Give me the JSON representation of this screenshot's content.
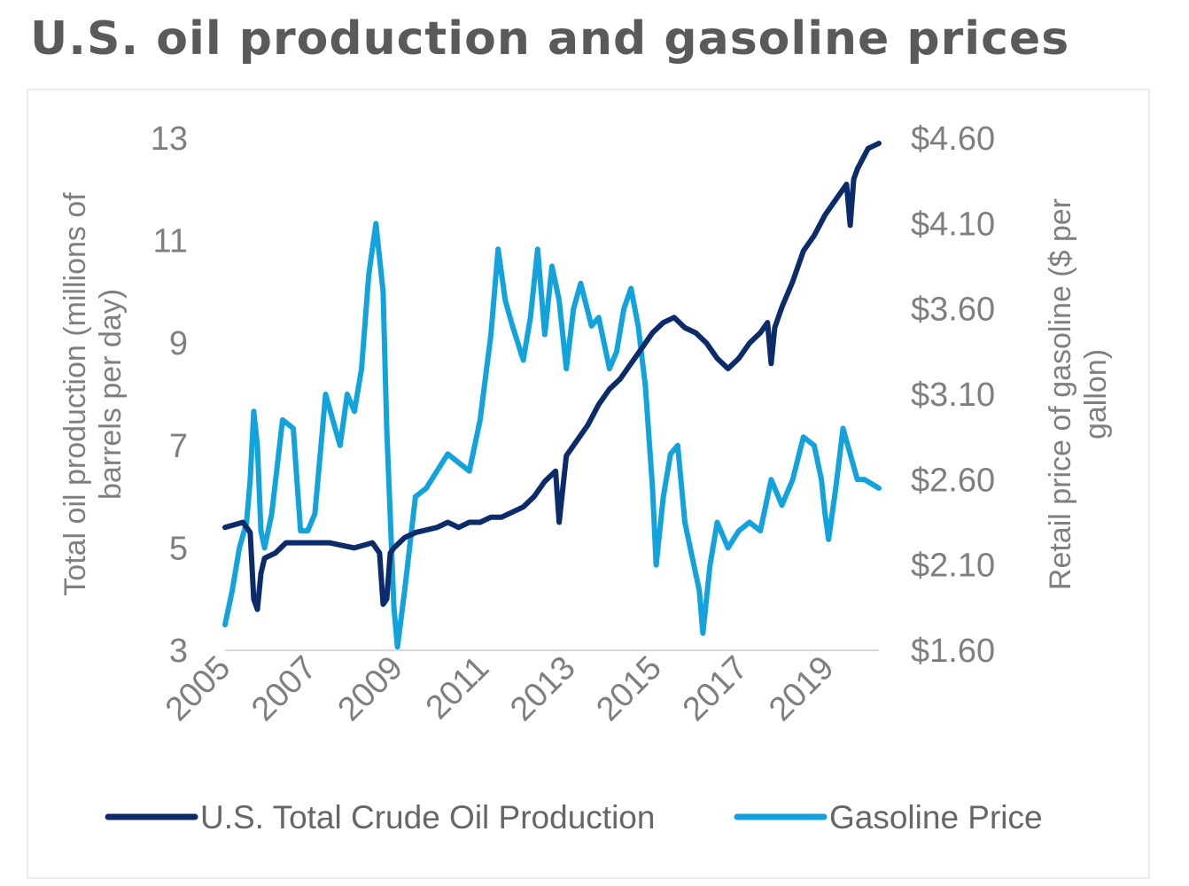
{
  "page": {
    "title": "U.S. oil production and gasoline prices"
  },
  "colors": {
    "production": "#0c2b6a",
    "gasoline": "#12a2dc",
    "axis_text": "#7f7f7f",
    "axis_line": "#d9d9d9"
  },
  "chart_data": {
    "type": "line",
    "title": "U.S. oil production and gasoline prices",
    "x_type": "date",
    "x_ticks": [
      "2005",
      "2007",
      "2009",
      "2011",
      "2013",
      "2015",
      "2017",
      "2019"
    ],
    "xlim": [
      "2005-01",
      "2020-03"
    ],
    "y_left": {
      "label": "Total oil production (millions of barrels per day)",
      "label_lines": [
        "Total oil production (millions of",
        "barrels per day)"
      ],
      "ylim": [
        3,
        13
      ],
      "ticks": [
        "3",
        "5",
        "7",
        "9",
        "11",
        "13"
      ]
    },
    "y_right": {
      "label": "Retail price of gasoline ($ per gallon)",
      "label_lines": [
        "Retail price of gasoline ($ per",
        "gallon)"
      ],
      "ylim": [
        1.6,
        4.6
      ],
      "ticks": [
        "$1.60",
        "$2.10",
        "$2.60",
        "$3.10",
        "$3.60",
        "$4.10",
        "$4.60"
      ]
    },
    "grid": false,
    "legend_position": "bottom",
    "series": [
      {
        "name": "U.S. Total Crude Oil Production",
        "axis": "left",
        "color": "#0c2b6a",
        "x": [
          "2005-01",
          "2005-06",
          "2005-08",
          "2005-09",
          "2005-10",
          "2005-11",
          "2005-12",
          "2006-03",
          "2006-06",
          "2007-01",
          "2007-06",
          "2008-01",
          "2008-06",
          "2008-08",
          "2008-09",
          "2008-10",
          "2008-11",
          "2008-12",
          "2009-03",
          "2009-06",
          "2009-12",
          "2010-03",
          "2010-06",
          "2010-09",
          "2010-12",
          "2011-03",
          "2011-06",
          "2011-09",
          "2011-12",
          "2012-03",
          "2012-06",
          "2012-09",
          "2012-10",
          "2012-12",
          "2013-03",
          "2013-06",
          "2013-09",
          "2013-12",
          "2014-03",
          "2014-06",
          "2014-09",
          "2014-12",
          "2015-03",
          "2015-06",
          "2015-09",
          "2015-12",
          "2016-03",
          "2016-06",
          "2016-09",
          "2016-12",
          "2017-03",
          "2017-06",
          "2017-08",
          "2017-09",
          "2017-10",
          "2017-12",
          "2018-03",
          "2018-06",
          "2018-09",
          "2018-12",
          "2019-03",
          "2019-06",
          "2019-07",
          "2019-08",
          "2019-09",
          "2019-12",
          "2020-03"
        ],
        "values": [
          5.4,
          5.5,
          5.3,
          4.0,
          3.8,
          4.5,
          4.8,
          4.9,
          5.1,
          5.1,
          5.1,
          5.0,
          5.1,
          4.9,
          3.9,
          4.0,
          4.9,
          5.0,
          5.2,
          5.3,
          5.4,
          5.5,
          5.4,
          5.5,
          5.5,
          5.6,
          5.6,
          5.7,
          5.8,
          6.0,
          6.3,
          6.5,
          5.5,
          6.8,
          7.1,
          7.4,
          7.8,
          8.1,
          8.3,
          8.6,
          8.9,
          9.2,
          9.4,
          9.5,
          9.3,
          9.2,
          9.0,
          8.7,
          8.5,
          8.7,
          9.0,
          9.2,
          9.4,
          8.6,
          9.3,
          9.7,
          10.2,
          10.8,
          11.1,
          11.5,
          11.8,
          12.1,
          11.3,
          12.2,
          12.4,
          12.8,
          12.9
        ]
      },
      {
        "name": "Gasoline Price",
        "axis": "right",
        "color": "#12a2dc",
        "x": [
          "2005-01",
          "2005-03",
          "2005-05",
          "2005-07",
          "2005-08",
          "2005-09",
          "2005-10",
          "2005-11",
          "2005-12",
          "2006-02",
          "2006-05",
          "2006-08",
          "2006-10",
          "2006-12",
          "2007-02",
          "2007-05",
          "2007-07",
          "2007-09",
          "2007-11",
          "2008-01",
          "2008-03",
          "2008-05",
          "2008-07",
          "2008-09",
          "2008-10",
          "2008-12",
          "2009-01",
          "2009-03",
          "2009-06",
          "2009-09",
          "2009-12",
          "2010-03",
          "2010-06",
          "2010-09",
          "2010-12",
          "2011-03",
          "2011-05",
          "2011-07",
          "2011-09",
          "2011-12",
          "2012-02",
          "2012-04",
          "2012-06",
          "2012-08",
          "2012-10",
          "2012-12",
          "2013-02",
          "2013-04",
          "2013-07",
          "2013-09",
          "2013-12",
          "2014-02",
          "2014-04",
          "2014-06",
          "2014-08",
          "2014-10",
          "2014-12",
          "2015-01",
          "2015-03",
          "2015-05",
          "2015-07",
          "2015-09",
          "2015-11",
          "2016-01",
          "2016-02",
          "2016-04",
          "2016-06",
          "2016-09",
          "2016-12",
          "2017-03",
          "2017-06",
          "2017-09",
          "2017-12",
          "2018-03",
          "2018-06",
          "2018-09",
          "2018-11",
          "2018-12",
          "2019-01",
          "2019-03",
          "2019-05",
          "2019-07",
          "2019-09",
          "2019-11",
          "2020-03"
        ],
        "values": [
          1.75,
          1.95,
          2.2,
          2.35,
          2.6,
          3.0,
          2.8,
          2.3,
          2.2,
          2.4,
          2.95,
          2.9,
          2.3,
          2.3,
          2.4,
          3.1,
          2.95,
          2.8,
          3.1,
          3.0,
          3.25,
          3.8,
          4.1,
          3.7,
          2.9,
          1.85,
          1.62,
          1.95,
          2.5,
          2.55,
          2.65,
          2.75,
          2.7,
          2.65,
          2.95,
          3.45,
          3.95,
          3.65,
          3.5,
          3.3,
          3.55,
          3.95,
          3.45,
          3.85,
          3.65,
          3.25,
          3.6,
          3.75,
          3.5,
          3.55,
          3.25,
          3.35,
          3.6,
          3.72,
          3.5,
          3.15,
          2.55,
          2.1,
          2.5,
          2.75,
          2.8,
          2.35,
          2.15,
          1.95,
          1.7,
          2.1,
          2.35,
          2.2,
          2.3,
          2.35,
          2.3,
          2.6,
          2.45,
          2.6,
          2.85,
          2.8,
          2.6,
          2.4,
          2.25,
          2.55,
          2.9,
          2.75,
          2.6,
          2.6,
          2.55
        ]
      }
    ]
  }
}
